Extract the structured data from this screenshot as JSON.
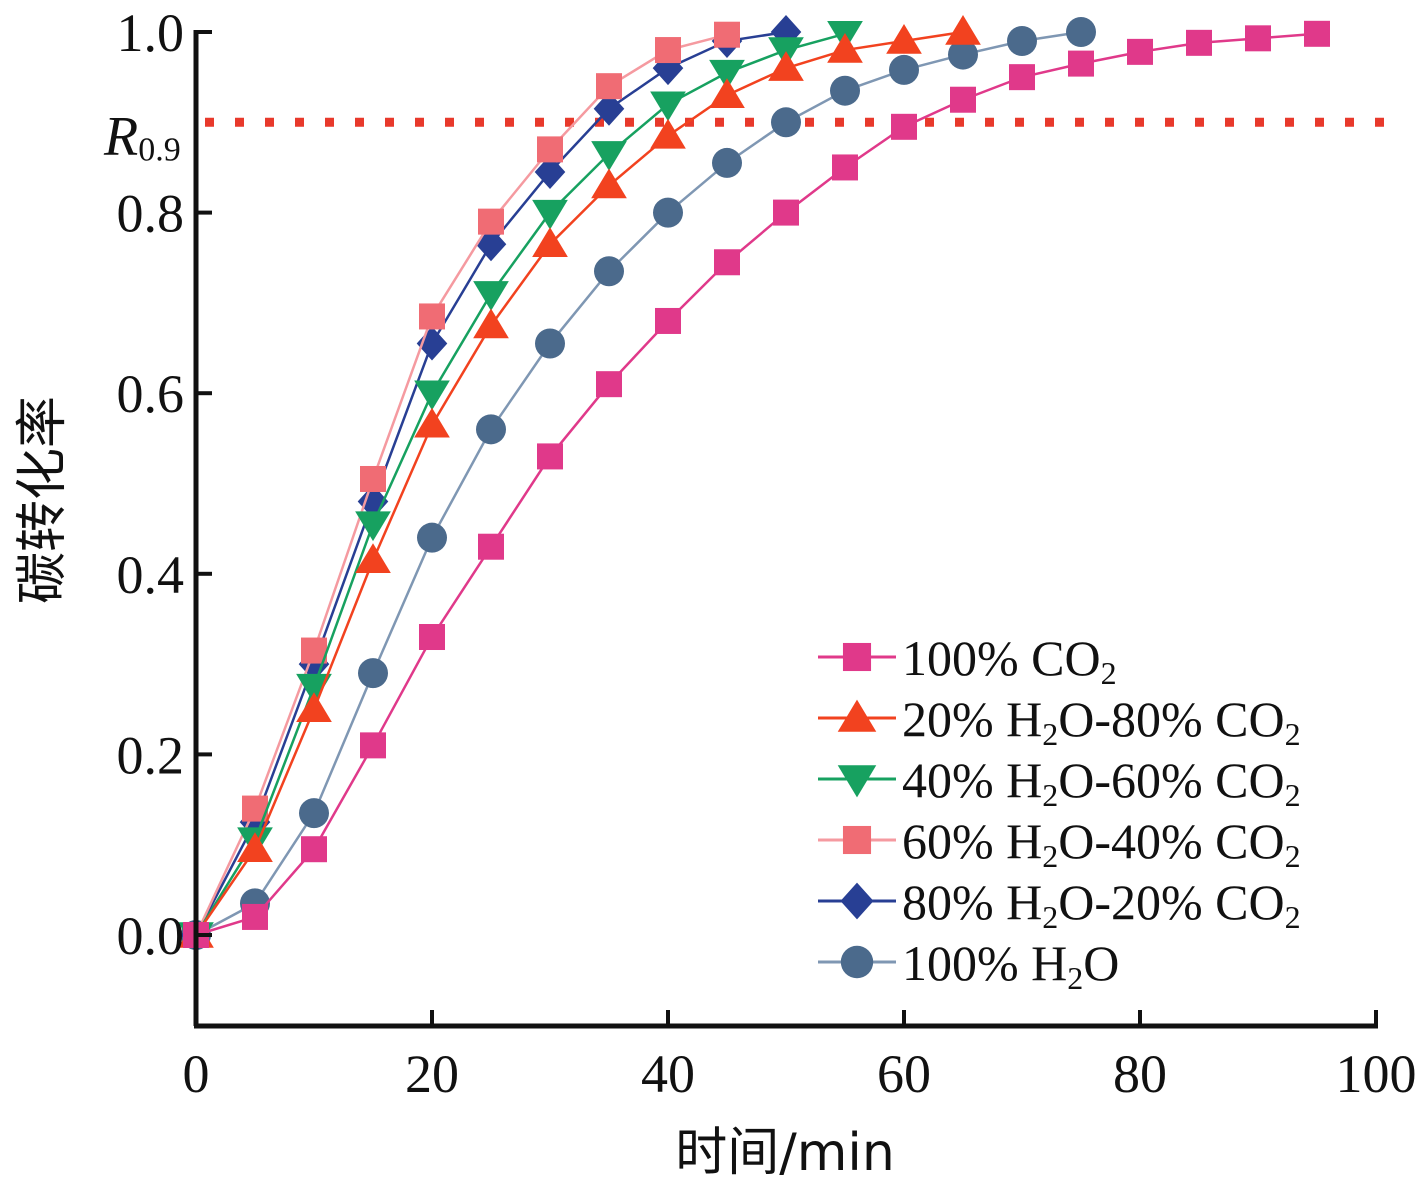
{
  "chart_data": {
    "type": "line",
    "xlabel": "时间/min",
    "ylabel": "碳转化率",
    "xlim": [
      0,
      100
    ],
    "ylim": [
      -0.1,
      1.0
    ],
    "xticks": [
      0,
      20,
      40,
      60,
      80,
      100
    ],
    "yticks": [
      0.0,
      0.2,
      0.4,
      0.6,
      0.8,
      1.0
    ],
    "xtick_labels": [
      "0",
      "20",
      "40",
      "60",
      "80",
      "100"
    ],
    "ytick_labels": [
      "0.0",
      "0.2",
      "0.4",
      "0.6",
      "0.8",
      "1.0"
    ],
    "grid": false,
    "legend_position": "bottom-right",
    "reference_line": {
      "y": 0.9,
      "label_main": "R",
      "label_sub": "0.9",
      "color": "#e8392b",
      "style": "dotted"
    },
    "series": [
      {
        "name": "100% CO2",
        "legend_parts": [
          [
            "100% CO",
            "normal"
          ],
          [
            "2",
            "sub"
          ]
        ],
        "color": "#e0398a",
        "line_color": "#e0398a",
        "marker": "square",
        "x": [
          0,
          5,
          10,
          15,
          20,
          25,
          30,
          35,
          40,
          45,
          50,
          55,
          60,
          65,
          70,
          75,
          80,
          85,
          90,
          95
        ],
        "y": [
          0.0,
          0.02,
          0.095,
          0.21,
          0.33,
          0.43,
          0.53,
          0.61,
          0.68,
          0.745,
          0.8,
          0.85,
          0.895,
          0.925,
          0.95,
          0.965,
          0.978,
          0.988,
          0.993,
          0.998
        ]
      },
      {
        "name": "20% H2O-80% CO2",
        "legend_parts": [
          [
            "20% H",
            "normal"
          ],
          [
            "2",
            "sub"
          ],
          [
            "O-80% CO",
            "normal"
          ],
          [
            "2",
            "sub"
          ]
        ],
        "color": "#f2421f",
        "line_color": "#f2421f",
        "marker": "triangle-up",
        "x": [
          0,
          5,
          10,
          15,
          20,
          25,
          30,
          35,
          40,
          45,
          50,
          55,
          60,
          65
        ],
        "y": [
          0.0,
          0.095,
          0.25,
          0.415,
          0.565,
          0.675,
          0.765,
          0.83,
          0.885,
          0.93,
          0.96,
          0.98,
          0.99,
          1.0
        ]
      },
      {
        "name": "40% H2O-60% CO2",
        "legend_parts": [
          [
            "40% H",
            "normal"
          ],
          [
            "2",
            "sub"
          ],
          [
            "O-60% CO",
            "normal"
          ],
          [
            "2",
            "sub"
          ]
        ],
        "color": "#17a160",
        "line_color": "#17a160",
        "marker": "triangle-down",
        "x": [
          0,
          5,
          10,
          15,
          20,
          25,
          30,
          35,
          40,
          45,
          50,
          55
        ],
        "y": [
          0.0,
          0.105,
          0.275,
          0.455,
          0.6,
          0.71,
          0.8,
          0.865,
          0.92,
          0.955,
          0.98,
          0.998
        ]
      },
      {
        "name": "60% H2O-40% CO2",
        "legend_parts": [
          [
            "60% H",
            "normal"
          ],
          [
            "2",
            "sub"
          ],
          [
            "O-40% CO",
            "normal"
          ],
          [
            "2",
            "sub"
          ]
        ],
        "color": "#f06c74",
        "line_color": "#f59aa0",
        "marker": "square",
        "x": [
          0,
          5,
          10,
          15,
          20,
          25,
          30,
          35,
          40,
          45
        ],
        "y": [
          0.0,
          0.14,
          0.315,
          0.505,
          0.685,
          0.79,
          0.87,
          0.94,
          0.98,
          0.997
        ]
      },
      {
        "name": "80% H2O-20% CO2",
        "legend_parts": [
          [
            "80% H",
            "normal"
          ],
          [
            "2",
            "sub"
          ],
          [
            "O-20% CO",
            "normal"
          ],
          [
            "2",
            "sub"
          ]
        ],
        "color": "#283f94",
        "line_color": "#283f94",
        "marker": "diamond",
        "x": [
          0,
          5,
          10,
          15,
          20,
          25,
          30,
          35,
          40,
          45,
          50
        ],
        "y": [
          0.0,
          0.125,
          0.3,
          0.48,
          0.655,
          0.765,
          0.845,
          0.915,
          0.96,
          0.99,
          1.0
        ]
      },
      {
        "name": "100% H2O",
        "legend_parts": [
          [
            "100% H",
            "normal"
          ],
          [
            "2",
            "sub"
          ],
          [
            "O",
            "normal"
          ]
        ],
        "color": "#4b6a8c",
        "line_color": "#7f97b3",
        "marker": "circle",
        "x": [
          0,
          5,
          10,
          15,
          20,
          25,
          30,
          35,
          40,
          45,
          50,
          55,
          60,
          65,
          70,
          75
        ],
        "y": [
          0.0,
          0.035,
          0.135,
          0.29,
          0.44,
          0.56,
          0.655,
          0.735,
          0.8,
          0.855,
          0.9,
          0.935,
          0.958,
          0.975,
          0.99,
          1.0
        ]
      }
    ]
  }
}
